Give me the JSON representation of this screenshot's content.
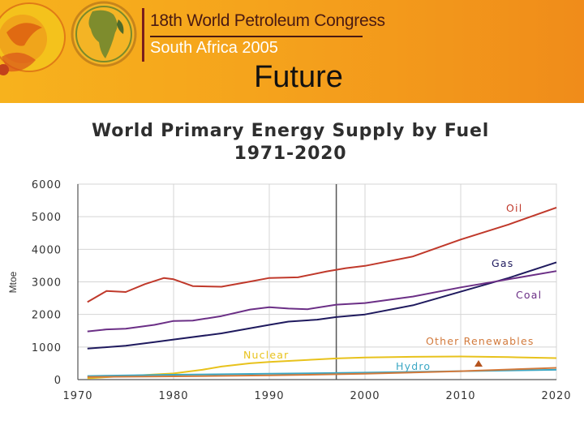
{
  "header": {
    "congress_name": "18th World Petroleum Congress",
    "congress_event": "South Africa 2005",
    "slide_title": "Future"
  },
  "colors": {
    "banner": "#f5a31c",
    "oil": "#c0392b",
    "gas": "#1f1a5e",
    "coal": "#6b2f86",
    "nuclear": "#e8c21c",
    "hydro": "#3aa7c4",
    "other_renewables": "#d27a3c",
    "forecast_divider": "#555555"
  },
  "chart_data": {
    "type": "line",
    "title": "World Primary Energy Supply by Fuel",
    "subtitle": "1971-2020",
    "xlabel": "",
    "ylabel": "Mtoe",
    "xlim": [
      1970,
      2020
    ],
    "ylim": [
      0,
      6000
    ],
    "xticks": [
      1970,
      1980,
      1990,
      2000,
      2010,
      2020
    ],
    "yticks": [
      0,
      1000,
      2000,
      3000,
      4000,
      5000,
      6000
    ],
    "grid": true,
    "forecast_start": 1997,
    "series": [
      {
        "name": "Oil",
        "color": "#c0392b",
        "points": [
          [
            1971,
            2380
          ],
          [
            1973,
            2720
          ],
          [
            1975,
            2690
          ],
          [
            1977,
            2930
          ],
          [
            1979,
            3120
          ],
          [
            1980,
            3080
          ],
          [
            1982,
            2870
          ],
          [
            1985,
            2850
          ],
          [
            1988,
            3010
          ],
          [
            1990,
            3120
          ],
          [
            1993,
            3140
          ],
          [
            1996,
            3320
          ],
          [
            1998,
            3420
          ],
          [
            2000,
            3490
          ],
          [
            2005,
            3780
          ],
          [
            2010,
            4300
          ],
          [
            2015,
            4760
          ],
          [
            2020,
            5280
          ]
        ]
      },
      {
        "name": "Gas",
        "color": "#1f1a5e",
        "points": [
          [
            1971,
            950
          ],
          [
            1975,
            1040
          ],
          [
            1978,
            1150
          ],
          [
            1980,
            1230
          ],
          [
            1985,
            1420
          ],
          [
            1990,
            1680
          ],
          [
            1992,
            1780
          ],
          [
            1995,
            1840
          ],
          [
            1997,
            1920
          ],
          [
            2000,
            2000
          ],
          [
            2005,
            2280
          ],
          [
            2010,
            2700
          ],
          [
            2015,
            3120
          ],
          [
            2020,
            3600
          ]
        ]
      },
      {
        "name": "Coal",
        "color": "#6b2f86",
        "points": [
          [
            1971,
            1480
          ],
          [
            1973,
            1540
          ],
          [
            1975,
            1560
          ],
          [
            1978,
            1680
          ],
          [
            1980,
            1800
          ],
          [
            1982,
            1810
          ],
          [
            1985,
            1950
          ],
          [
            1988,
            2150
          ],
          [
            1990,
            2220
          ],
          [
            1992,
            2180
          ],
          [
            1994,
            2160
          ],
          [
            1997,
            2300
          ],
          [
            2000,
            2350
          ],
          [
            2005,
            2550
          ],
          [
            2010,
            2830
          ],
          [
            2015,
            3080
          ],
          [
            2020,
            3330
          ]
        ]
      },
      {
        "name": "Nuclear",
        "color": "#e8c21c",
        "points": [
          [
            1971,
            40
          ],
          [
            1975,
            110
          ],
          [
            1980,
            190
          ],
          [
            1983,
            300
          ],
          [
            1985,
            400
          ],
          [
            1988,
            500
          ],
          [
            1990,
            540
          ],
          [
            1995,
            620
          ],
          [
            1997,
            650
          ],
          [
            2000,
            680
          ],
          [
            2005,
            700
          ],
          [
            2010,
            710
          ],
          [
            2015,
            690
          ],
          [
            2020,
            660
          ]
        ]
      },
      {
        "name": "Hydro",
        "color": "#3aa7c4",
        "points": [
          [
            1971,
            110
          ],
          [
            1980,
            150
          ],
          [
            1990,
            180
          ],
          [
            2000,
            215
          ],
          [
            2010,
            260
          ],
          [
            2020,
            300
          ]
        ]
      },
      {
        "name": "Other Renewables",
        "color": "#d27a3c",
        "points": [
          [
            1971,
            80
          ],
          [
            1980,
            100
          ],
          [
            1990,
            130
          ],
          [
            2000,
            180
          ],
          [
            2010,
            260
          ],
          [
            2020,
            360
          ]
        ]
      }
    ]
  }
}
